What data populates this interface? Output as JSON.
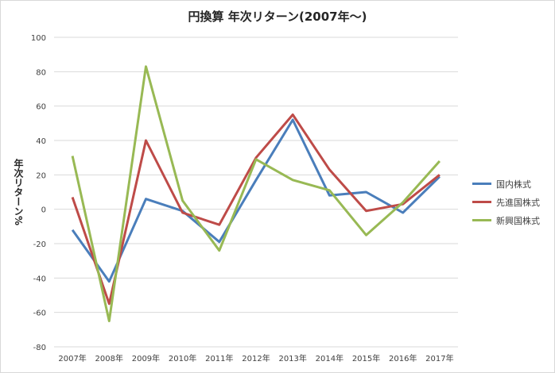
{
  "chart_data": {
    "type": "line",
    "title": "円換算 年次リターン(2007年～)",
    "xlabel": "",
    "ylabel": "年次リターン%",
    "ylim": [
      -80,
      100
    ],
    "yticks": [
      100,
      80,
      60,
      40,
      20,
      0,
      -20,
      -40,
      -60,
      -80
    ],
    "categories": [
      "2007年",
      "2008年",
      "2009年",
      "2010年",
      "2011年",
      "2012年",
      "2013年",
      "2014年",
      "2015年",
      "2016年",
      "2017年"
    ],
    "grid": true,
    "legend_position": "right",
    "series": [
      {
        "name": "国内株式",
        "color": "#4a7ebb",
        "values": [
          -12,
          -42,
          6,
          -1,
          -19,
          17,
          52,
          8,
          10,
          -2,
          19
        ]
      },
      {
        "name": "先進国株式",
        "color": "#be4b48",
        "values": [
          7,
          -55,
          40,
          -2,
          -9,
          30,
          55,
          23,
          -1,
          3,
          20
        ]
      },
      {
        "name": "新興国株式",
        "color": "#98b954",
        "values": [
          31,
          -65,
          83,
          5,
          -24,
          29,
          17,
          11,
          -15,
          4,
          28
        ]
      }
    ]
  }
}
